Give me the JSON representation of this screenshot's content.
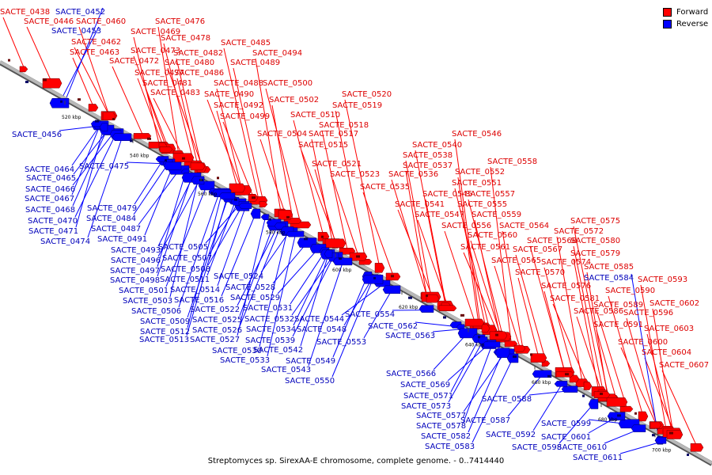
{
  "caption": "Streptomyces sp. SirexAA-E chromosome, complete genome. - 0..7414440",
  "legend": {
    "forward_label": "Forward",
    "reverse_label": "Reverse",
    "forward_color": "#ff0000",
    "reverse_color": "#0000ff"
  },
  "colors": {
    "forward_text": "#dd0000",
    "reverse_text": "#0000bb",
    "axis": "#999999"
  },
  "scale_ticks": [
    "520 kbp",
    "540 kbp",
    "560 kbp",
    "580 kbp",
    "600 kbp",
    "620 kbp",
    "640 kbp",
    "660 kbp",
    "680 kbp",
    "700 kbp"
  ],
  "forward_genes": [
    "SACTE_0438",
    "SACTE_0446",
    "SACTE_0460",
    "SACTE_0462",
    "SACTE_0463",
    "SACTE_0469",
    "SACTE_0472",
    "SACTE_0473",
    "SACTE_0476",
    "SACTE_0477",
    "SACTE_0478",
    "SACTE_0480",
    "SACTE_0481",
    "SACTE_0482",
    "SACTE_0483",
    "SACTE_0485",
    "SACTE_0486",
    "SACTE_0488",
    "SACTE_0489",
    "SACTE_0490",
    "SACTE_0492",
    "SACTE_0494",
    "SACTE_0499",
    "SACTE_0500",
    "SACTE_0502",
    "SACTE_0504",
    "SACTE_0510",
    "SACTE_0515",
    "SACTE_0517",
    "SACTE_0518",
    "SACTE_0519",
    "SACTE_0520",
    "SACTE_0521",
    "SACTE_0523",
    "SACTE_0535",
    "SACTE_0536",
    "SACTE_0537",
    "SACTE_0538",
    "SACTE_0540",
    "SACTE_0541",
    "SACTE_0545",
    "SACTE_0546",
    "SACTE_0547",
    "SACTE_0551",
    "SACTE_0552",
    "SACTE_0555",
    "SACTE_0556",
    "SACTE_0557",
    "SACTE_0558",
    "SACTE_0559",
    "SACTE_0560",
    "SACTE_0561",
    "SACTE_0564",
    "SACTE_0565",
    "SACTE_0567",
    "SACTE_0568",
    "SACTE_0570",
    "SACTE_0572",
    "SACTE_0574",
    "SACTE_0575",
    "SACTE_0576",
    "SACTE_0579",
    "SACTE_0580",
    "SACTE_0581",
    "SACTE_0585",
    "SACTE_0586",
    "SACTE_0589",
    "SACTE_0590",
    "SACTE_0591",
    "SACTE_0593",
    "SACTE_0596",
    "SACTE_0600",
    "SACTE_0602",
    "SACTE_0603",
    "SACTE_0604",
    "SACTE_0607"
  ],
  "reverse_genes": [
    "SACTE_0452",
    "SACTE_0453",
    "SACTE_0456",
    "SACTE_0464",
    "SACTE_0465",
    "SACTE_0466",
    "SACTE_0467",
    "SACTE_0468",
    "SACTE_0470",
    "SACTE_0471",
    "SACTE_0474",
    "SACTE_0475",
    "SACTE_0479",
    "SACTE_0484",
    "SACTE_0487",
    "SACTE_0491",
    "SACTE_0493",
    "SACTE_0496",
    "SACTE_0497",
    "SACTE_0498",
    "SACTE_0501",
    "SACTE_0503",
    "SACTE_0505",
    "SACTE_0506",
    "SACTE_0507",
    "SACTE_0508",
    "SACTE_0509",
    "SACTE_0511",
    "SACTE_0512",
    "SACTE_0513",
    "SACTE_0514",
    "SACTE_0516",
    "SACTE_0522",
    "SACTE_0524",
    "SACTE_0525",
    "SACTE_0526",
    "SACTE_0527",
    "SACTE_0528",
    "SACTE_0529",
    "SACTE_0530",
    "SACTE_0531",
    "SACTE_0532",
    "SACTE_0533",
    "SACTE_0534",
    "SACTE_0539",
    "SACTE_0542",
    "SACTE_0543",
    "SACTE_0544",
    "SACTE_0548",
    "SACTE_0549",
    "SACTE_0550",
    "SACTE_0553",
    "SACTE_0554",
    "SACTE_0562",
    "SACTE_0563",
    "SACTE_0566",
    "SACTE_0569",
    "SACTE_0571",
    "SACTE_0573",
    "SACTE_0577",
    "SACTE_0578",
    "SACTE_0582",
    "SACTE_0583",
    "SACTE_0584",
    "SACTE_0587",
    "SACTE_0588",
    "SACTE_0592",
    "SACTE_0598",
    "SACTE_0599",
    "SACTE_0601",
    "SACTE_0610",
    "SACTE_0611"
  ]
}
